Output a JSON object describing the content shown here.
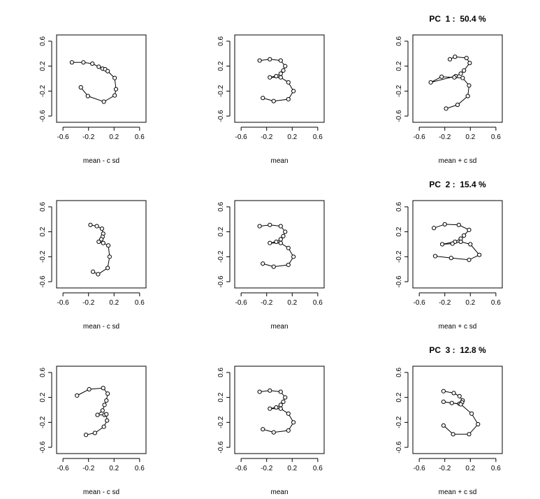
{
  "chart_data": [
    {
      "type": "line",
      "panel": "pc1-minus",
      "xlabel": "mean - c sd",
      "xticks": [
        "-0.6",
        "-0.2",
        "0.2",
        "0.6"
      ],
      "yticks": [
        "-0.6",
        "-0.2",
        "0.2",
        "0.6"
      ],
      "xlim": [
        -0.7,
        0.7
      ],
      "ylim": [
        -0.7,
        0.7
      ],
      "points": [
        [
          -0.46,
          0.26
        ],
        [
          -0.28,
          0.26
        ],
        [
          -0.14,
          0.24
        ],
        [
          -0.04,
          0.19
        ],
        [
          0.02,
          0.16
        ],
        [
          0.06,
          0.15
        ],
        [
          0.1,
          0.12
        ],
        [
          0.21,
          0.01
        ],
        [
          0.23,
          -0.17
        ],
        [
          0.21,
          -0.27
        ],
        [
          0.04,
          -0.37
        ],
        [
          -0.21,
          -0.28
        ],
        [
          -0.32,
          -0.14
        ]
      ]
    },
    {
      "type": "line",
      "panel": "pc1-mean",
      "xlabel": "mean",
      "xticks": [
        "-0.6",
        "-0.2",
        "0.2",
        "0.6"
      ],
      "yticks": [
        "-0.6",
        "-0.2",
        "0.2",
        "0.6"
      ],
      "xlim": [
        -0.7,
        0.7
      ],
      "ylim": [
        -0.7,
        0.7
      ],
      "points": [
        [
          -0.31,
          0.29
        ],
        [
          -0.15,
          0.31
        ],
        [
          0.02,
          0.29
        ],
        [
          0.09,
          0.2
        ],
        [
          0.06,
          0.13
        ],
        [
          0.02,
          0.08
        ],
        [
          -0.05,
          0.04
        ],
        [
          -0.15,
          0.02
        ],
        [
          0.02,
          0.02
        ],
        [
          0.14,
          -0.06
        ],
        [
          0.22,
          -0.2
        ],
        [
          0.14,
          -0.33
        ],
        [
          -0.09,
          -0.36
        ],
        [
          -0.26,
          -0.31
        ]
      ]
    },
    {
      "type": "line",
      "panel": "pc1-plus",
      "title": "PC  1 :  50.4 %",
      "xlabel": "mean + c sd",
      "xticks": [
        "-0.6",
        "-0.2",
        "0.2",
        "0.6"
      ],
      "yticks": [
        "-0.6",
        "-0.2",
        "0.2",
        "0.6"
      ],
      "xlim": [
        -0.7,
        0.7
      ],
      "ylim": [
        -0.7,
        0.7
      ],
      "points": [
        [
          -0.12,
          0.31
        ],
        [
          -0.04,
          0.35
        ],
        [
          0.14,
          0.33
        ],
        [
          0.19,
          0.25
        ],
        [
          0.1,
          0.13
        ],
        [
          0.05,
          0.08
        ],
        [
          -0.03,
          0.04
        ],
        [
          -0.42,
          -0.06
        ],
        [
          -0.25,
          0.03
        ],
        [
          -0.05,
          0.02
        ],
        [
          0.08,
          0.01
        ],
        [
          0.18,
          -0.11
        ],
        [
          0.16,
          -0.28
        ],
        [
          0.0,
          -0.42
        ],
        [
          -0.18,
          -0.48
        ]
      ]
    },
    {
      "type": "line",
      "panel": "pc2-minus",
      "xlabel": "mean - c sd",
      "xticks": [
        "-0.6",
        "-0.2",
        "0.2",
        "0.6"
      ],
      "yticks": [
        "-0.6",
        "-0.2",
        "0.2",
        "0.6"
      ],
      "xlim": [
        -0.7,
        0.7
      ],
      "ylim": [
        -0.7,
        0.7
      ],
      "points": [
        [
          -0.17,
          0.31
        ],
        [
          -0.07,
          0.29
        ],
        [
          0.01,
          0.25
        ],
        [
          0.03,
          0.17
        ],
        [
          0.02,
          0.12
        ],
        [
          0.0,
          0.08
        ],
        [
          -0.04,
          0.04
        ],
        [
          0.03,
          0.02
        ],
        [
          0.11,
          -0.02
        ],
        [
          0.13,
          -0.2
        ],
        [
          0.1,
          -0.38
        ],
        [
          -0.05,
          -0.48
        ],
        [
          -0.13,
          -0.44
        ]
      ]
    },
    {
      "type": "line",
      "panel": "pc2-mean",
      "xlabel": "mean",
      "xticks": [
        "-0.6",
        "-0.2",
        "0.2",
        "0.6"
      ],
      "yticks": [
        "-0.6",
        "-0.2",
        "0.2",
        "0.6"
      ],
      "xlim": [
        -0.7,
        0.7
      ],
      "ylim": [
        -0.7,
        0.7
      ],
      "points": [
        [
          -0.31,
          0.29
        ],
        [
          -0.15,
          0.31
        ],
        [
          0.02,
          0.29
        ],
        [
          0.09,
          0.2
        ],
        [
          0.06,
          0.13
        ],
        [
          0.02,
          0.08
        ],
        [
          -0.05,
          0.04
        ],
        [
          -0.15,
          0.02
        ],
        [
          0.02,
          0.02
        ],
        [
          0.14,
          -0.06
        ],
        [
          0.22,
          -0.2
        ],
        [
          0.14,
          -0.33
        ],
        [
          -0.09,
          -0.36
        ],
        [
          -0.26,
          -0.31
        ]
      ]
    },
    {
      "type": "line",
      "panel": "pc2-plus",
      "title": "PC  2 :  15.4 %",
      "xlabel": "mean + c sd",
      "xticks": [
        "-0.6",
        "-0.2",
        "0.2",
        "0.6"
      ],
      "yticks": [
        "-0.6",
        "-0.2",
        "0.2",
        "0.6"
      ],
      "xlim": [
        -0.7,
        0.7
      ],
      "ylim": [
        -0.7,
        0.7
      ],
      "points": [
        [
          -0.37,
          0.26
        ],
        [
          -0.2,
          0.32
        ],
        [
          0.02,
          0.31
        ],
        [
          0.18,
          0.23
        ],
        [
          0.1,
          0.14
        ],
        [
          0.05,
          0.09
        ],
        [
          -0.04,
          0.04
        ],
        [
          -0.24,
          0.0
        ],
        [
          -0.08,
          0.01
        ],
        [
          0.05,
          0.04
        ],
        [
          0.2,
          0.0
        ],
        [
          0.34,
          -0.17
        ],
        [
          0.18,
          -0.25
        ],
        [
          -0.1,
          -0.22
        ],
        [
          -0.35,
          -0.19
        ]
      ]
    },
    {
      "type": "line",
      "panel": "pc3-minus",
      "xlabel": "mean - c sd",
      "xticks": [
        "-0.6",
        "-0.2",
        "0.2",
        "0.6"
      ],
      "yticks": [
        "-0.6",
        "-0.2",
        "0.2",
        "0.6"
      ],
      "xlim": [
        -0.7,
        0.7
      ],
      "ylim": [
        -0.7,
        0.7
      ],
      "points": [
        [
          -0.38,
          0.23
        ],
        [
          -0.19,
          0.33
        ],
        [
          0.03,
          0.35
        ],
        [
          0.1,
          0.26
        ],
        [
          0.08,
          0.15
        ],
        [
          0.05,
          0.08
        ],
        [
          0.02,
          -0.01
        ],
        [
          -0.06,
          -0.08
        ],
        [
          0.05,
          -0.08
        ],
        [
          0.08,
          -0.07
        ],
        [
          0.09,
          -0.17
        ],
        [
          0.04,
          -0.27
        ],
        [
          -0.1,
          -0.37
        ],
        [
          -0.24,
          -0.4
        ]
      ]
    },
    {
      "type": "line",
      "panel": "pc3-mean",
      "xlabel": "mean",
      "xticks": [
        "-0.6",
        "-0.2",
        "0.2",
        "0.6"
      ],
      "yticks": [
        "-0.6",
        "-0.2",
        "0.2",
        "0.6"
      ],
      "xlim": [
        -0.7,
        0.7
      ],
      "ylim": [
        -0.7,
        0.7
      ],
      "points": [
        [
          -0.31,
          0.29
        ],
        [
          -0.15,
          0.31
        ],
        [
          0.02,
          0.29
        ],
        [
          0.09,
          0.2
        ],
        [
          0.06,
          0.13
        ],
        [
          0.02,
          0.08
        ],
        [
          -0.05,
          0.04
        ],
        [
          -0.15,
          0.02
        ],
        [
          0.02,
          0.02
        ],
        [
          0.14,
          -0.06
        ],
        [
          0.22,
          -0.2
        ],
        [
          0.14,
          -0.33
        ],
        [
          -0.09,
          -0.36
        ],
        [
          -0.26,
          -0.31
        ]
      ]
    },
    {
      "type": "line",
      "panel": "pc3-plus",
      "title": "PC  3 :  12.8 %",
      "xlabel": "mean + c sd",
      "xticks": [
        "-0.6",
        "-0.2",
        "0.2",
        "0.6"
      ],
      "yticks": [
        "-0.6",
        "-0.2",
        "0.2",
        "0.6"
      ],
      "xlim": [
        -0.7,
        0.7
      ],
      "ylim": [
        -0.7,
        0.7
      ],
      "points": [
        [
          -0.22,
          0.3
        ],
        [
          -0.06,
          0.27
        ],
        [
          0.03,
          0.22
        ],
        [
          0.08,
          0.15
        ],
        [
          0.07,
          0.12
        ],
        [
          0.03,
          0.1
        ],
        [
          -0.09,
          0.11
        ],
        [
          -0.22,
          0.13
        ],
        [
          0.05,
          0.09
        ],
        [
          0.22,
          -0.06
        ],
        [
          0.32,
          -0.23
        ],
        [
          0.18,
          -0.39
        ],
        [
          -0.07,
          -0.39
        ],
        [
          -0.22,
          -0.25
        ]
      ]
    }
  ]
}
